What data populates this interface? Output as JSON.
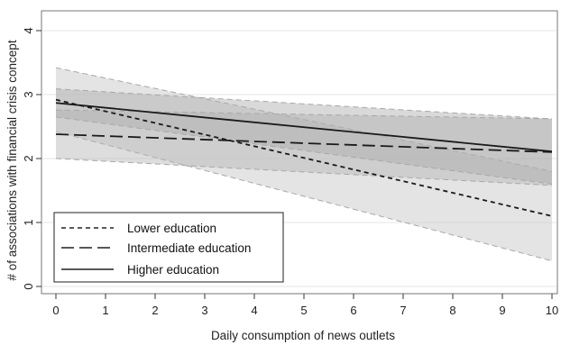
{
  "chart_data": {
    "type": "line",
    "title": "",
    "xlabel": "Daily consumption of news outlets",
    "ylabel": "# of associations with financial crisis concept",
    "xlim": [
      0,
      10
    ],
    "ylim": [
      0,
      4
    ],
    "x_ticks": [
      "0",
      "1",
      "2",
      "3",
      "4",
      "5",
      "6",
      "7",
      "8",
      "9",
      "10"
    ],
    "y_ticks": [
      "0",
      "1",
      "2",
      "3",
      "4"
    ],
    "grid": true,
    "legend_position": "bottom-left",
    "x": [
      0,
      10
    ],
    "series": [
      {
        "name": "Lower education",
        "dash": "short-dash",
        "values": [
          2.92,
          1.1
        ],
        "ci_low": [
          2.42,
          0.4
        ],
        "ci_high": [
          3.42,
          1.8
        ]
      },
      {
        "name": "Intermediate education",
        "dash": "long-dash",
        "values": [
          2.38,
          2.1
        ],
        "ci_low": [
          2.0,
          1.58
        ],
        "ci_high": [
          2.76,
          2.62
        ]
      },
      {
        "name": "Higher education",
        "dash": "solid",
        "values": [
          2.87,
          2.11
        ],
        "ci_low": [
          2.65,
          1.6
        ],
        "ci_high": [
          3.09,
          2.62
        ]
      }
    ]
  }
}
